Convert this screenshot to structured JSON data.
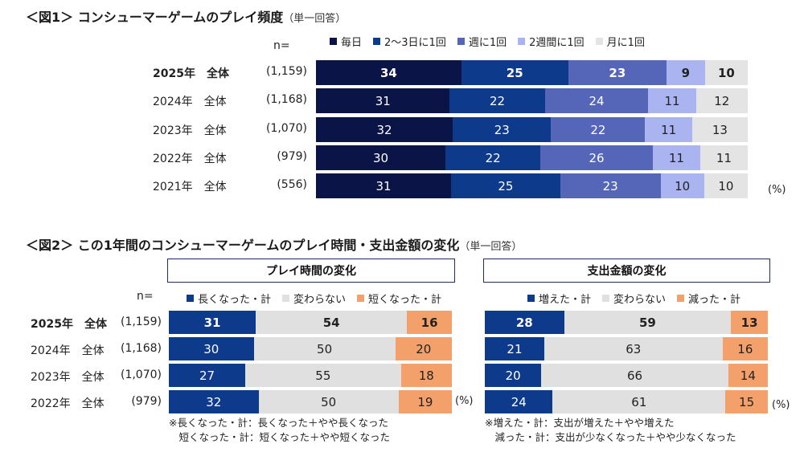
{
  "fig1": {
    "title": "＜図1＞ コンシューマーゲームのプレイ頻度",
    "note": "（単一回答）",
    "n_label": "n=",
    "legend": [
      {
        "label": "毎日",
        "color": "#0b1446"
      },
      {
        "label": "2～3日に1回",
        "color": "#0e3a8c"
      },
      {
        "label": "週に1回",
        "color": "#5566b8"
      },
      {
        "label": "2週間に1回",
        "color": "#a9b4f0"
      },
      {
        "label": "月に1回",
        "color": "#e4e4e4"
      }
    ],
    "rows": [
      {
        "label": "2025年　全体",
        "n": "(1,159)"
      },
      {
        "label": "2024年　全体",
        "n": "(1,168)"
      },
      {
        "label": "2023年　全体",
        "n": "(1,070)"
      },
      {
        "label": "2022年　全体",
        "n": "(979)"
      },
      {
        "label": "2021年　全体",
        "n": "(556)"
      }
    ],
    "pct": "(%)"
  },
  "fig2": {
    "title": "＜図2＞ この1年間のコンシューマーゲームのプレイ時間・支出金額の変化",
    "note": "（単一回答）",
    "n_label": "n=",
    "rows": [
      {
        "label": "2025年　全体",
        "n": "(1,159)"
      },
      {
        "label": "2024年　全体",
        "n": "(1,168)"
      },
      {
        "label": "2023年　全体",
        "n": "(1,070)"
      },
      {
        "label": "2022年　全体",
        "n": "(979)"
      }
    ],
    "left": {
      "header": "プレイ時間の変化",
      "legend": [
        {
          "label": "長くなった・計",
          "color": "#0e3a8c"
        },
        {
          "label": "変わらない",
          "color": "#e0e0e0"
        },
        {
          "label": "短くなった・計",
          "color": "#f4a06a"
        }
      ],
      "pct": "(%)",
      "footnote": [
        "※長くなった・計：長くなった＋やや長くなった",
        "　短くなった・計：短くなった＋やや短くなった"
      ]
    },
    "right": {
      "header": "支出金額の変化",
      "legend": [
        {
          "label": "増えた・計",
          "color": "#0e3a8c"
        },
        {
          "label": "変わらない",
          "color": "#e0e0e0"
        },
        {
          "label": "減った・計",
          "color": "#f4a06a"
        }
      ],
      "pct": "(%)",
      "footnote": [
        "※増えた・計：支出が増えた＋やや増えた",
        "　減った・計：支出が少なくなった＋やや少なくなった"
      ]
    }
  },
  "chart_data": [
    {
      "type": "bar",
      "orientation": "horizontal",
      "stacked": true,
      "title": "＜図1＞ コンシューマーゲームのプレイ頻度",
      "categories": [
        "2025年　全体",
        "2024年　全体",
        "2023年　全体",
        "2022年　全体",
        "2021年　全体"
      ],
      "series": [
        {
          "name": "毎日",
          "values": [
            34,
            31,
            32,
            30,
            31
          ]
        },
        {
          "name": "2～3日に1回",
          "values": [
            25,
            22,
            23,
            22,
            25
          ]
        },
        {
          "name": "週に1回",
          "values": [
            23,
            24,
            22,
            26,
            23
          ]
        },
        {
          "name": "2週間に1回",
          "values": [
            9,
            11,
            11,
            11,
            10
          ]
        },
        {
          "name": "月に1回",
          "values": [
            10,
            12,
            13,
            11,
            10
          ]
        }
      ],
      "legend": "top"
    },
    {
      "type": "bar",
      "orientation": "horizontal",
      "stacked": true,
      "title": "プレイ時間の変化",
      "categories": [
        "2025年　全体",
        "2024年　全体",
        "2023年　全体",
        "2022年　全体"
      ],
      "series": [
        {
          "name": "長くなった・計",
          "values": [
            31,
            30,
            27,
            32
          ]
        },
        {
          "name": "変わらない",
          "values": [
            54,
            50,
            55,
            50
          ]
        },
        {
          "name": "短くなった・計",
          "values": [
            16,
            20,
            18,
            19
          ]
        }
      ],
      "legend": "top"
    },
    {
      "type": "bar",
      "orientation": "horizontal",
      "stacked": true,
      "title": "支出金額の変化",
      "categories": [
        "2025年　全体",
        "2024年　全体",
        "2023年　全体",
        "2022年　全体"
      ],
      "series": [
        {
          "name": "増えた・計",
          "values": [
            28,
            21,
            20,
            24
          ]
        },
        {
          "name": "変わらない",
          "values": [
            59,
            63,
            66,
            61
          ]
        },
        {
          "name": "減った・計",
          "values": [
            13,
            16,
            14,
            15
          ]
        }
      ],
      "legend": "top"
    }
  ]
}
